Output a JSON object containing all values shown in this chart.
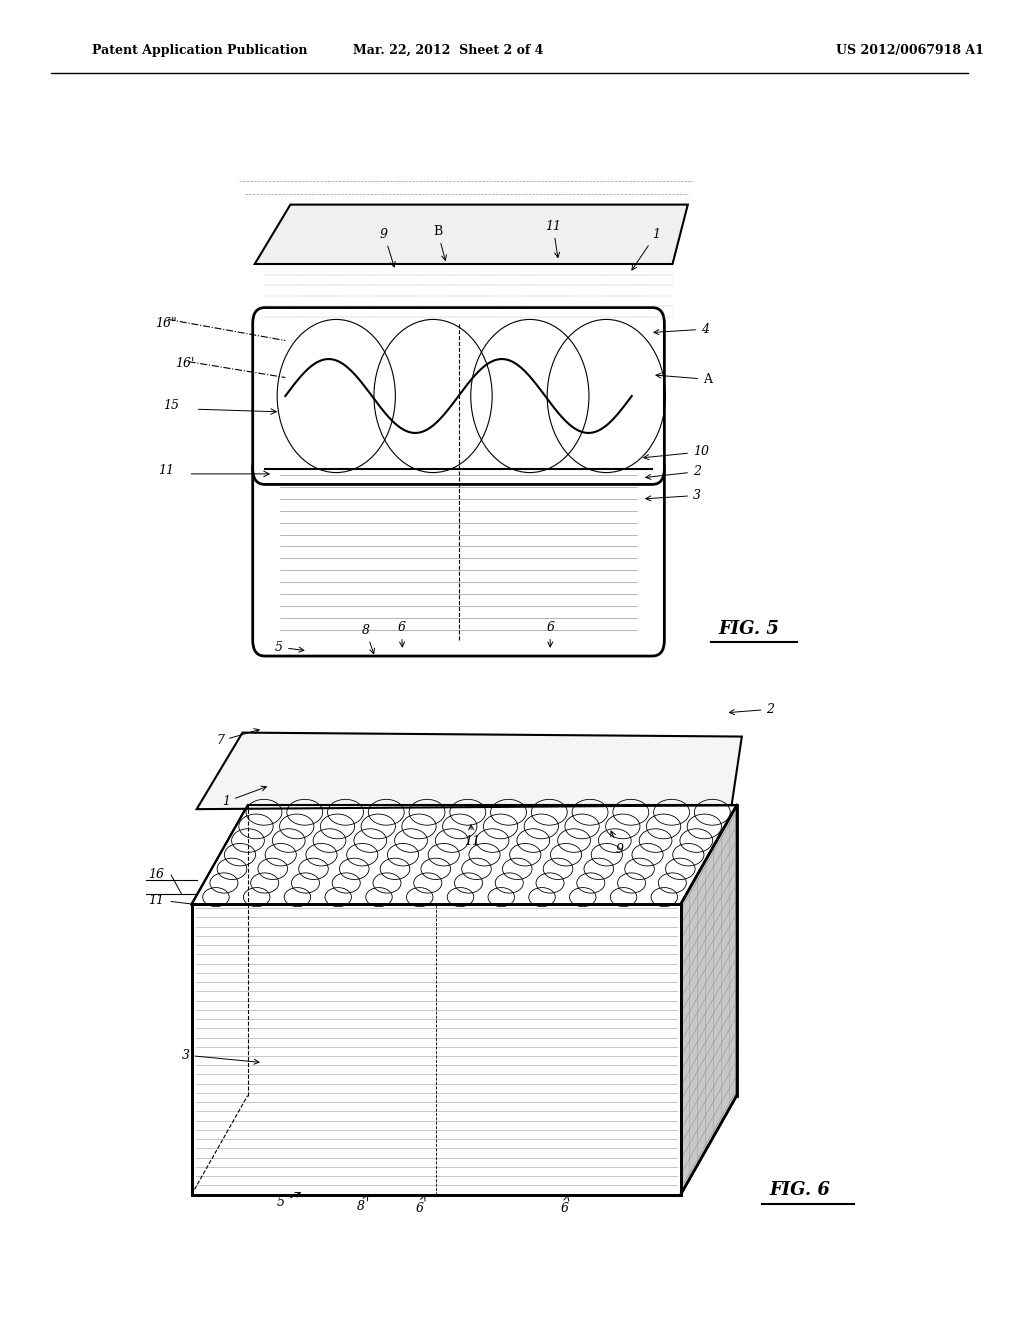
{
  "bg_color": "#ffffff",
  "header_left": "Patent Application Publication",
  "header_mid": "Mar. 22, 2012  Sheet 2 of 4",
  "header_right": "US 2012/0067918 A1",
  "fig5_label": "FIG. 5",
  "fig6_label": "FIG. 6"
}
